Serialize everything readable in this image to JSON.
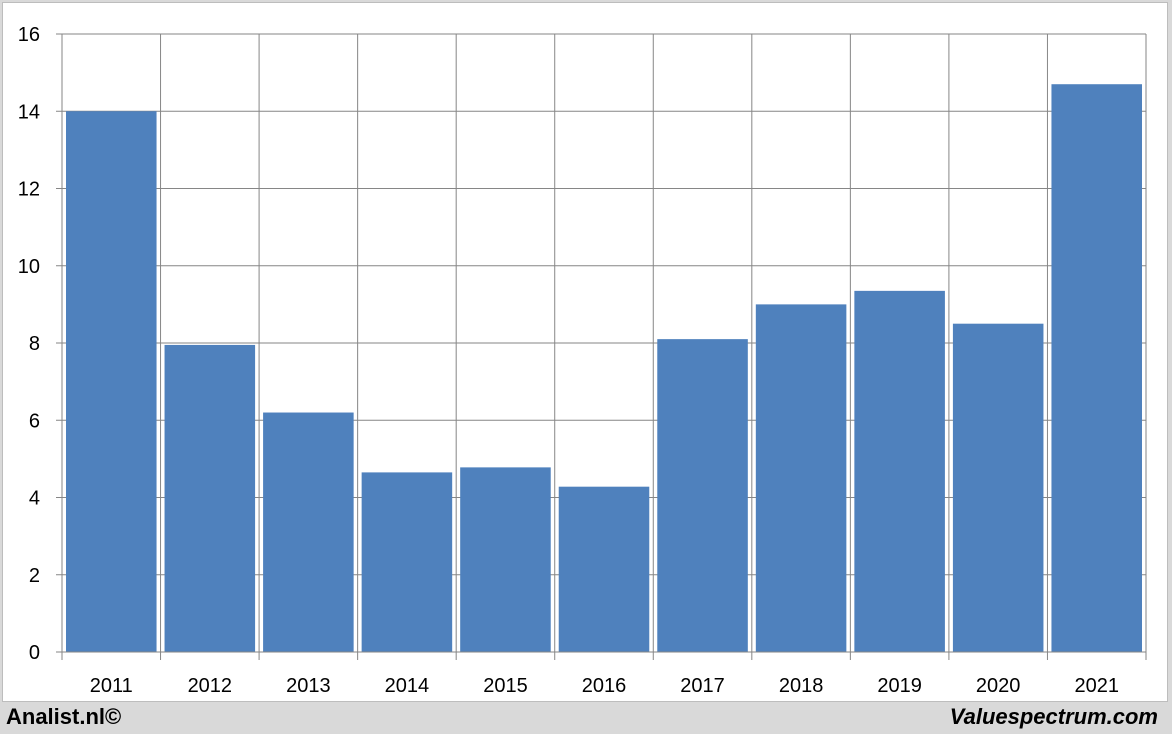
{
  "chart_data": {
    "type": "bar",
    "categories": [
      "2011",
      "2012",
      "2013",
      "2014",
      "2015",
      "2016",
      "2017",
      "2018",
      "2019",
      "2020",
      "2021"
    ],
    "values": [
      14.0,
      7.95,
      6.2,
      4.65,
      4.78,
      4.28,
      8.1,
      9.0,
      9.35,
      8.5,
      14.7
    ],
    "title": "",
    "xlabel": "",
    "ylabel": "",
    "ylim": [
      0,
      16
    ],
    "yticks": [
      "0",
      "2",
      "4",
      "6",
      "8",
      "10",
      "12",
      "14",
      "16"
    ],
    "grid": true,
    "bar_color": "#4f81bd",
    "grid_color": "#868686"
  },
  "footer": {
    "left_text": "Analist.nl©",
    "right_text": "Valuespectrum.com"
  }
}
